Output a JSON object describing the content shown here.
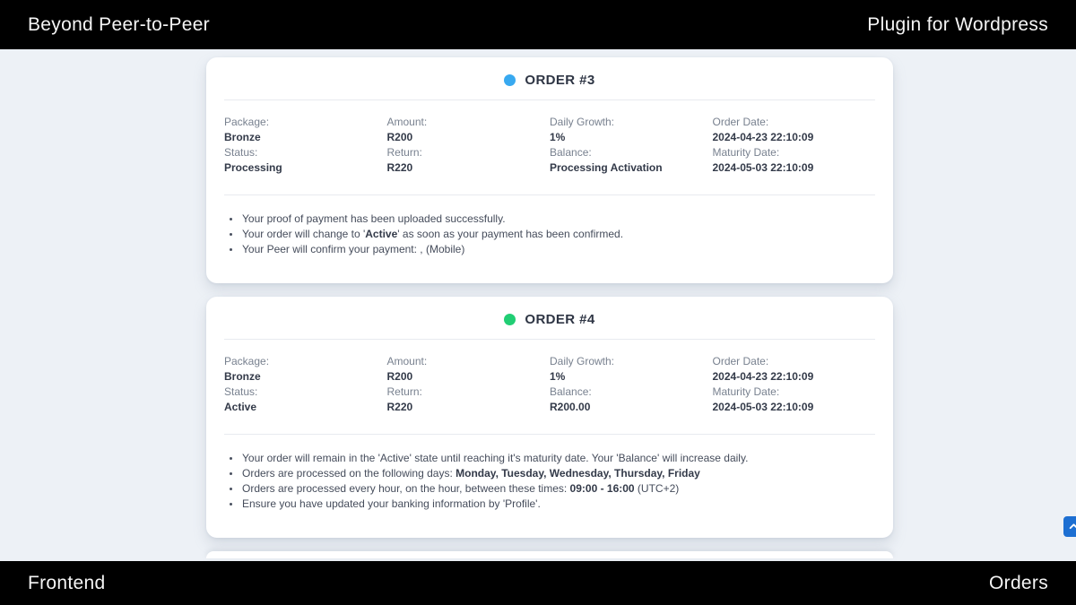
{
  "header": {
    "left_title": "Beyond Peer-to-Peer",
    "right_title": "Plugin for Wordpress"
  },
  "footer": {
    "left_label": "Frontend",
    "right_label": "Orders"
  },
  "colors": {
    "page_background": "#edf1f6",
    "bar_background": "#000000",
    "order3_dot": "#38a9f0",
    "order4_dot": "#21ce74",
    "scroll_top_button": "#1d6fd2"
  },
  "scroll_top": {
    "icon": "chevron-up-icon"
  },
  "orders": [
    {
      "title": "ORDER #3",
      "dot_color": "#38a9f0",
      "fields": [
        {
          "label": "Package:",
          "value": "Bronze"
        },
        {
          "label": "Amount:",
          "value": "R200"
        },
        {
          "label": "Daily Growth:",
          "value": "1%"
        },
        {
          "label": "Order Date:",
          "value": "2024-04-23 22:10:09"
        },
        {
          "label": "Status:",
          "value": "Processing"
        },
        {
          "label": "Return:",
          "value": "R220"
        },
        {
          "label": "Balance:",
          "value": "Processing Activation"
        },
        {
          "label": "Maturity Date:",
          "value": "2024-05-03 22:10:09"
        }
      ],
      "notes": [
        [
          {
            "text": "Your proof of payment has been uploaded successfully.",
            "bold": false
          }
        ],
        [
          {
            "text": "Your order will change to '",
            "bold": false
          },
          {
            "text": "Active",
            "bold": true
          },
          {
            "text": "' as soon as your payment has been confirmed.",
            "bold": false
          }
        ],
        [
          {
            "text": "Your Peer will confirm your payment: , (Mobile)",
            "bold": false
          }
        ]
      ]
    },
    {
      "title": "ORDER #4",
      "dot_color": "#21ce74",
      "fields": [
        {
          "label": "Package:",
          "value": "Bronze"
        },
        {
          "label": "Amount:",
          "value": "R200"
        },
        {
          "label": "Daily Growth:",
          "value": "1%"
        },
        {
          "label": "Order Date:",
          "value": "2024-04-23 22:10:09"
        },
        {
          "label": "Status:",
          "value": "Active"
        },
        {
          "label": "Return:",
          "value": "R220"
        },
        {
          "label": "Balance:",
          "value": "R200.00"
        },
        {
          "label": "Maturity Date:",
          "value": "2024-05-03 22:10:09"
        }
      ],
      "notes": [
        [
          {
            "text": "Your order will remain in the 'Active' state until reaching it's maturity date. Your 'Balance' will increase daily.",
            "bold": false
          }
        ],
        [
          {
            "text": "Orders are processed on the following days: ",
            "bold": false
          },
          {
            "text": "Monday, Tuesday, Wednesday, Thursday, Friday",
            "bold": true
          }
        ],
        [
          {
            "text": "Orders are processed every hour, on the hour, between these times: ",
            "bold": false
          },
          {
            "text": "09:00 - 16:00",
            "bold": true
          },
          {
            "text": " (UTC+2)",
            "bold": false
          }
        ],
        [
          {
            "text": "Ensure you have updated your banking information by 'Profile'.",
            "bold": false
          }
        ]
      ]
    }
  ]
}
